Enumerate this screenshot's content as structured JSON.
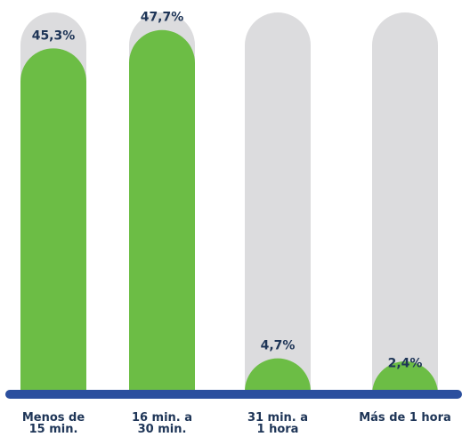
{
  "chart_data": {
    "type": "bar",
    "categories": [
      [
        "Menos de",
        "15 min."
      ],
      [
        "16 min. a",
        "30 min."
      ],
      [
        "31 min. a",
        "1 hora"
      ],
      [
        "Más de 1 hora"
      ]
    ],
    "values": [
      45.3,
      47.7,
      4.7,
      2.4
    ],
    "value_labels": [
      "45,3%",
      "47,7%",
      "4,7%",
      "2,4%"
    ],
    "ylim": [
      0,
      50
    ],
    "colors": {
      "bar": "#6cbd45",
      "track": "#dcdcde",
      "baseline": "#2b4f9e",
      "label_text": "#1e3557"
    }
  }
}
